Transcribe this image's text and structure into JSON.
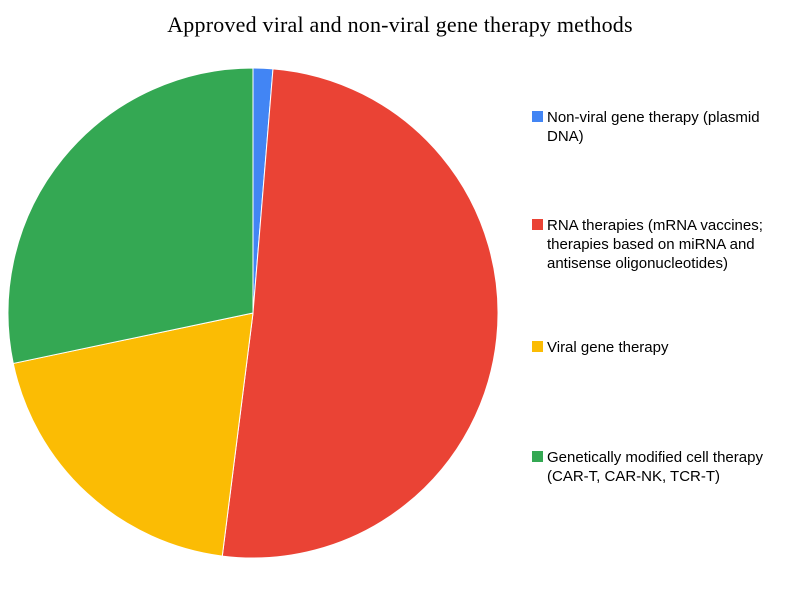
{
  "title": "Approved viral and non-viral gene therapy methods",
  "chart_data": {
    "type": "pie",
    "title": "Approved viral and non-viral gene therapy methods",
    "categories": [
      "Non-viral gene therapy (plasmid DNA)",
      "RNA therapies (mRNA vaccines; therapies based on miRNA and antisense oligonucleotides)",
      "Viral gene therapy",
      "Genetically modified cell therapy (CAR-T, CAR-NK, TCR-T)"
    ],
    "values": [
      1.3,
      50.7,
      19.7,
      28.3
    ],
    "unit": "percent_of_whole",
    "colors": [
      "#4285f4",
      "#ea4335",
      "#fbbc04",
      "#34a853"
    ],
    "start_angle_deg": 0,
    "direction": "clockwise",
    "legend_position": "right",
    "labels_on_slices": false
  },
  "legend": {
    "items": [
      {
        "label": "Non-viral gene therapy (plasmid DNA)",
        "color": "#4285f4"
      },
      {
        "label": "RNA therapies (mRNA vaccines; therapies based on miRNA and antisense oligonucleotides)",
        "color": "#ea4335"
      },
      {
        "label": "Viral gene therapy",
        "color": "#fbbc04"
      },
      {
        "label": "Genetically modified cell therapy (CAR-T, CAR-NK, TCR-T)",
        "color": "#34a853"
      }
    ]
  }
}
